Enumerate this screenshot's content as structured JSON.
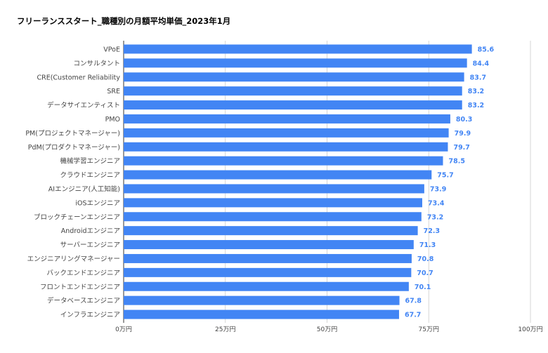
{
  "chart_data": {
    "type": "bar",
    "orientation": "horizontal",
    "title": "フリーランススタート_職種別の月額平均単価_2023年1月",
    "categories": [
      "VPoE",
      "コンサルタント",
      "CRE(Customer Reliability",
      "SRE",
      "データサイエンティスト",
      "PMO",
      "PM(プロジェクトマネージャー)",
      "PdM(プロダクトマネージャー)",
      "機械学習エンジニア",
      "クラウドエンジニア",
      "AIエンジニア(人工知能)",
      "iOSエンジニア",
      "ブロックチェーンエンジニア",
      "Androidエンジニア",
      "サーバーエンジニア",
      "エンジニアリングマネージャー",
      "バックエンドエンジニア",
      "フロントエンドエンジニア",
      "データベースエンジニア",
      "インフラエンジニア"
    ],
    "values": [
      85.6,
      84.4,
      83.7,
      83.2,
      83.2,
      80.3,
      79.9,
      79.7,
      78.5,
      75.7,
      73.9,
      73.4,
      73.2,
      72.3,
      71.3,
      70.8,
      70.7,
      70.1,
      67.8,
      67.7
    ],
    "value_labels": [
      "85.6",
      "84.4",
      "83.7",
      "83.2",
      "83.2",
      "80.3",
      "79.9",
      "79.7",
      "78.5",
      "75.7",
      "73.9",
      "73.4",
      "73.2",
      "72.3",
      "71.3",
      "70.8",
      "70.7",
      "70.1",
      "67.8",
      "67.7"
    ],
    "xlim": [
      0,
      100
    ],
    "x_ticks": [
      0,
      25,
      50,
      75,
      100
    ],
    "x_tick_labels": [
      "0万円",
      "25万円",
      "50万円",
      "75万円",
      "100万円"
    ],
    "grid": true,
    "bar_color": "#4285f4",
    "label_color": "#4285f4",
    "grid_color": "#cccccc"
  }
}
